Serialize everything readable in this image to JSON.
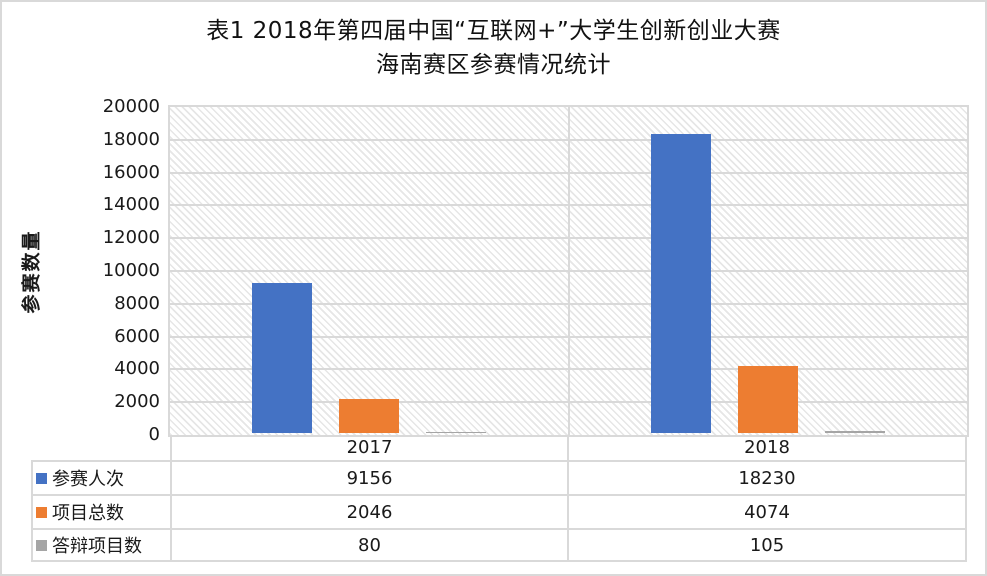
{
  "chart_data": {
    "type": "bar",
    "title": "表1 2018年第四届中国“互联网+”大学生创新创业大赛 海南赛区参赛情况统计",
    "title_lines": [
      "表1 2018年第四届中国“互联网+”大学生创新创业大赛",
      "海南赛区参赛情况统计"
    ],
    "categories": [
      "2017",
      "2018"
    ],
    "series": [
      {
        "name": "参赛人次",
        "color": "#4472C4",
        "values": [
          9156,
          18230
        ]
      },
      {
        "name": "项目总数",
        "color": "#ED7D31",
        "values": [
          2046,
          4074
        ]
      },
      {
        "name": "答辩项目数",
        "color": "#A5A5A5",
        "values": [
          80,
          105
        ]
      }
    ],
    "xlabel": "",
    "ylabel": "参赛数量",
    "ylim": [
      0,
      20000
    ],
    "ytick_step": 2000,
    "grid": true,
    "legend_position": "data-table-left",
    "data_table_shown": true,
    "plot_background": "diagonal-hatch"
  },
  "colors": {
    "grid_border": "#D9D9D9",
    "text": "#1A1A1A",
    "hatch": "#E6E6E6",
    "series_blue": "#4472C4",
    "series_orange": "#ED7D31",
    "series_gray": "#A5A5A5"
  }
}
